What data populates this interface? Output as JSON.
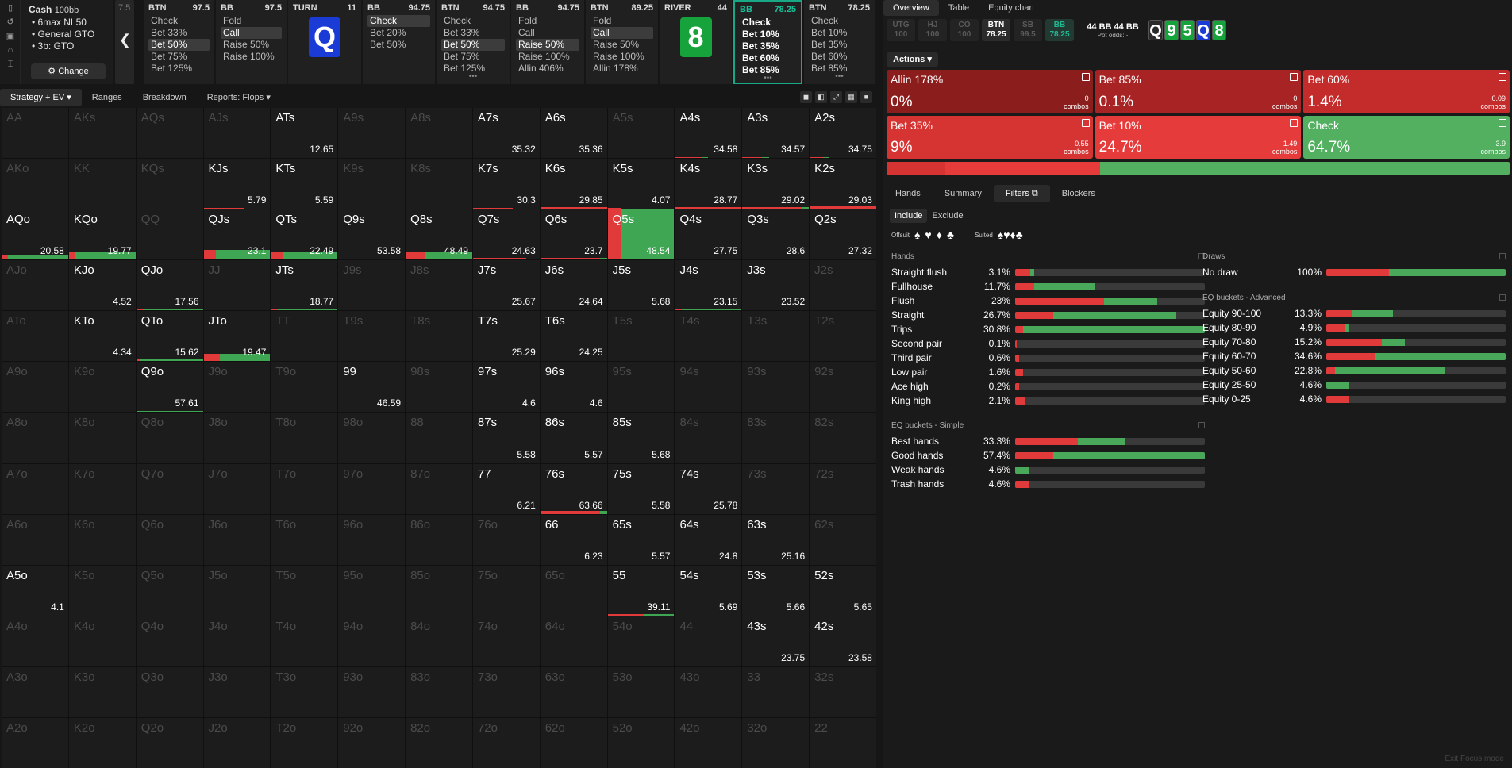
{
  "game": {
    "title": "Cash",
    "depth": "100bb",
    "lines": [
      "6max NL50",
      "General GTO",
      "3b: GTO"
    ],
    "change": "Change"
  },
  "nav": {
    "stack_peek": "7.5",
    "back_icon": "chevron-left-icon"
  },
  "columns": [
    {
      "pos": "BTN",
      "stack": "97.5",
      "options": [
        "Check",
        "Bet 33%",
        "Bet 50%",
        "Bet 75%",
        "Bet 125%"
      ],
      "selected": 2
    },
    {
      "pos": "BB",
      "stack": "97.5",
      "options": [
        "Fold",
        "Call",
        "Raise 50%",
        "Raise 100%"
      ],
      "selected": 1
    },
    {
      "pos": "TURN",
      "stack": "11",
      "card": "Q",
      "card_color": "#1b3bd6"
    },
    {
      "pos": "BB",
      "stack": "94.75",
      "options": [
        "Check",
        "Bet 20%",
        "Bet 50%"
      ],
      "selected": 0
    },
    {
      "pos": "BTN",
      "stack": "94.75",
      "options": [
        "Check",
        "Bet 33%",
        "Bet 50%",
        "Bet 75%",
        "Bet 125%"
      ],
      "selected": 2,
      "more": true
    },
    {
      "pos": "BB",
      "stack": "94.75",
      "options": [
        "Fold",
        "Call",
        "Raise 50%",
        "Raise 100%",
        "Allin 406%"
      ],
      "selected": 2
    },
    {
      "pos": "BTN",
      "stack": "89.25",
      "options": [
        "Fold",
        "Call",
        "Raise 50%",
        "Raise 100%",
        "Allin 178%"
      ],
      "selected": 1
    },
    {
      "pos": "RIVER",
      "stack": "44",
      "card": "8",
      "card_color": "#17a33c"
    },
    {
      "pos": "BB",
      "stack": "78.25",
      "options": [
        "Check",
        "Bet 10%",
        "Bet 35%",
        "Bet 60%",
        "Bet 85%"
      ],
      "active": true,
      "more": true
    },
    {
      "pos": "BTN",
      "stack": "78.25",
      "options": [
        "Check",
        "Bet 10%",
        "Bet 35%",
        "Bet 60%",
        "Bet 85%"
      ],
      "more": true
    }
  ],
  "strategy_tabs": [
    "Strategy + EV",
    "Ranges",
    "Breakdown",
    "Reports: Flops"
  ],
  "view_icons": [
    "cube-icon",
    "half-icon",
    "expand-icon",
    "grid-icon",
    "square-icon"
  ],
  "grid": [
    [
      [
        "AA",
        "",
        1
      ],
      [
        "AKs",
        "",
        1
      ],
      [
        "AQs",
        "",
        1
      ],
      [
        "AJs",
        "",
        1
      ],
      [
        "ATs",
        "12.65",
        0
      ],
      [
        "A9s",
        "",
        1
      ],
      [
        "A8s",
        "",
        1
      ],
      [
        "A7s",
        "35.32",
        0
      ],
      [
        "A6s",
        "35.36",
        0
      ],
      [
        "A5s",
        "",
        1
      ],
      [
        "A4s",
        "34.58",
        0,
        0.4,
        0.1
      ],
      [
        "A3s",
        "34.57",
        0,
        0.3,
        0.1
      ],
      [
        "A2s",
        "34.75",
        0,
        0.2,
        0.1
      ]
    ],
    [
      [
        "AKo",
        "",
        1
      ],
      [
        "KK",
        "",
        1
      ],
      [
        "KQs",
        "",
        1
      ],
      [
        "KJs",
        "5.79",
        0,
        0.6,
        0,
        2
      ],
      [
        "KTs",
        "5.59",
        0
      ],
      [
        "K9s",
        "",
        1
      ],
      [
        "K8s",
        "",
        1
      ],
      [
        "K7s",
        "30.3",
        0,
        0.6,
        0,
        2
      ],
      [
        "K6s",
        "29.85",
        0,
        1,
        0,
        3
      ],
      [
        "K5s",
        "4.07",
        0,
        0.2,
        0,
        2
      ],
      [
        "K4s",
        "28.77",
        0,
        1,
        0,
        4
      ],
      [
        "K3s",
        "29.02",
        0,
        0.9,
        0.1,
        3
      ],
      [
        "K2s",
        "29.03",
        0,
        1,
        0,
        5
      ]
    ],
    [
      [
        "AQo",
        "20.58",
        0,
        0.1,
        0.9,
        8
      ],
      [
        "KQo",
        "19.77",
        0,
        0.1,
        0.9,
        14
      ],
      [
        "QQ",
        "",
        1
      ],
      [
        "QJs",
        "23.1",
        0,
        0.18,
        0.82,
        20
      ],
      [
        "QTs",
        "22.49",
        0,
        0.18,
        0.82,
        16
      ],
      [
        "Q9s",
        "53.58",
        0
      ],
      [
        "Q8s",
        "48.49",
        0,
        0.3,
        0.7,
        14
      ],
      [
        "Q7s",
        "24.63",
        0,
        0.8,
        0,
        3
      ],
      [
        "Q6s",
        "23.7",
        0,
        0.9,
        0.1,
        3
      ],
      [
        "Q5s",
        "48.54",
        0,
        0.2,
        0.8,
        100
      ],
      [
        "Q4s",
        "27.75",
        0,
        0.5,
        0,
        2
      ],
      [
        "Q3s",
        "28.6",
        0,
        1,
        0,
        2
      ],
      [
        "Q2s",
        "27.32",
        0
      ]
    ],
    [
      [
        "AJo",
        "",
        1
      ],
      [
        "KJo",
        "4.52",
        0
      ],
      [
        "QJo",
        "17.56",
        0,
        0.1,
        0.9,
        4
      ],
      [
        "JJ",
        "",
        1
      ],
      [
        "JTs",
        "18.77",
        0,
        0.1,
        0.9,
        3
      ],
      [
        "J9s",
        "",
        1
      ],
      [
        "J8s",
        "",
        1
      ],
      [
        "J7s",
        "25.67",
        0
      ],
      [
        "J6s",
        "24.64",
        0
      ],
      [
        "J5s",
        "5.68",
        0
      ],
      [
        "J4s",
        "23.15",
        0,
        0.1,
        0.9,
        3
      ],
      [
        "J3s",
        "23.52",
        0
      ],
      [
        "J2s",
        "",
        1
      ]
    ],
    [
      [
        "ATo",
        "",
        1
      ],
      [
        "KTo",
        "4.34",
        0
      ],
      [
        "QTo",
        "15.62",
        0,
        0.05,
        0.95,
        3
      ],
      [
        "JTo",
        "19.47",
        0,
        0.25,
        0.75,
        15
      ],
      [
        "TT",
        "",
        1
      ],
      [
        "T9s",
        "",
        1
      ],
      [
        "T8s",
        "",
        1
      ],
      [
        "T7s",
        "25.29",
        0
      ],
      [
        "T6s",
        "24.25",
        0
      ],
      [
        "T5s",
        "",
        1
      ],
      [
        "T4s",
        "",
        1
      ],
      [
        "T3s",
        "",
        1
      ],
      [
        "T2s",
        "",
        1
      ]
    ],
    [
      [
        "A9o",
        "",
        1
      ],
      [
        "K9o",
        "",
        1
      ],
      [
        "Q9o",
        "57.61",
        0,
        0,
        1,
        2
      ],
      [
        "J9o",
        "",
        1
      ],
      [
        "T9o",
        "",
        1
      ],
      [
        "99",
        "46.59",
        0
      ],
      [
        "98s",
        "",
        1
      ],
      [
        "97s",
        "4.6",
        0
      ],
      [
        "96s",
        "4.6",
        0
      ],
      [
        "95s",
        "",
        1
      ],
      [
        "94s",
        "",
        1
      ],
      [
        "93s",
        "",
        1
      ],
      [
        "92s",
        "",
        1
      ]
    ],
    [
      [
        "A8o",
        "",
        1
      ],
      [
        "K8o",
        "",
        1
      ],
      [
        "Q8o",
        "",
        1
      ],
      [
        "J8o",
        "",
        1
      ],
      [
        "T8o",
        "",
        1
      ],
      [
        "98o",
        "",
        1
      ],
      [
        "88",
        "",
        1
      ],
      [
        "87s",
        "5.58",
        0
      ],
      [
        "86s",
        "5.57",
        0
      ],
      [
        "85s",
        "5.68",
        0
      ],
      [
        "84s",
        "",
        1
      ],
      [
        "83s",
        "",
        1
      ],
      [
        "82s",
        "",
        1
      ]
    ],
    [
      [
        "A7o",
        "",
        1
      ],
      [
        "K7o",
        "",
        1
      ],
      [
        "Q7o",
        "",
        1
      ],
      [
        "J7o",
        "",
        1
      ],
      [
        "T7o",
        "",
        1
      ],
      [
        "97o",
        "",
        1
      ],
      [
        "87o",
        "",
        1
      ],
      [
        "77",
        "6.21",
        0
      ],
      [
        "76s",
        "63.66",
        0,
        0.9,
        0.1,
        5
      ],
      [
        "75s",
        "5.58",
        0
      ],
      [
        "74s",
        "25.78",
        0
      ],
      [
        "73s",
        "",
        1
      ],
      [
        "72s",
        "",
        1
      ]
    ],
    [
      [
        "A6o",
        "",
        1
      ],
      [
        "K6o",
        "",
        1
      ],
      [
        "Q6o",
        "",
        1
      ],
      [
        "J6o",
        "",
        1
      ],
      [
        "T6o",
        "",
        1
      ],
      [
        "96o",
        "",
        1
      ],
      [
        "86o",
        "",
        1
      ],
      [
        "76o",
        "",
        1
      ],
      [
        "66",
        "6.23",
        0
      ],
      [
        "65s",
        "5.57",
        0
      ],
      [
        "64s",
        "24.8",
        0
      ],
      [
        "63s",
        "25.16",
        0
      ],
      [
        "62s",
        "",
        1
      ]
    ],
    [
      [
        "A5o",
        "4.1",
        0
      ],
      [
        "K5o",
        "",
        1
      ],
      [
        "Q5o",
        "",
        1
      ],
      [
        "J5o",
        "",
        1
      ],
      [
        "T5o",
        "",
        1
      ],
      [
        "95o",
        "",
        1
      ],
      [
        "85o",
        "",
        1
      ],
      [
        "75o",
        "",
        1
      ],
      [
        "65o",
        "",
        1
      ],
      [
        "55",
        "39.11",
        0,
        0.55,
        0.45,
        3
      ],
      [
        "54s",
        "5.69",
        0
      ],
      [
        "53s",
        "5.66",
        0
      ],
      [
        "52s",
        "5.65",
        0
      ]
    ],
    [
      [
        "A4o",
        "",
        1
      ],
      [
        "K4o",
        "",
        1
      ],
      [
        "Q4o",
        "",
        1
      ],
      [
        "J4o",
        "",
        1
      ],
      [
        "T4o",
        "",
        1
      ],
      [
        "94o",
        "",
        1
      ],
      [
        "84o",
        "",
        1
      ],
      [
        "74o",
        "",
        1
      ],
      [
        "64o",
        "",
        1
      ],
      [
        "54o",
        "",
        1
      ],
      [
        "44",
        "",
        1
      ],
      [
        "43s",
        "23.75",
        0,
        0.3,
        0.7,
        2
      ],
      [
        "42s",
        "23.58",
        0,
        0,
        1,
        2
      ]
    ],
    [
      [
        "A3o",
        "",
        1
      ],
      [
        "K3o",
        "",
        1
      ],
      [
        "Q3o",
        "",
        1
      ],
      [
        "J3o",
        "",
        1
      ],
      [
        "T3o",
        "",
        1
      ],
      [
        "93o",
        "",
        1
      ],
      [
        "83o",
        "",
        1
      ],
      [
        "73o",
        "",
        1
      ],
      [
        "63o",
        "",
        1
      ],
      [
        "53o",
        "",
        1
      ],
      [
        "43o",
        "",
        1
      ],
      [
        "33",
        "",
        1
      ],
      [
        "32s",
        "",
        1
      ]
    ],
    [
      [
        "A2o",
        "",
        1
      ],
      [
        "K2o",
        "",
        1
      ],
      [
        "Q2o",
        "",
        1
      ],
      [
        "J2o",
        "",
        1
      ],
      [
        "T2o",
        "",
        1
      ],
      [
        "92o",
        "",
        1
      ],
      [
        "82o",
        "",
        1
      ],
      [
        "72o",
        "",
        1
      ],
      [
        "62o",
        "",
        1
      ],
      [
        "52o",
        "",
        1
      ],
      [
        "42o",
        "",
        1
      ],
      [
        "32o",
        "",
        1
      ],
      [
        "22",
        "",
        1
      ]
    ]
  ],
  "right_tabs": [
    "Overview",
    "Table",
    "Equity chart"
  ],
  "positions": [
    {
      "n": "UTG",
      "v": "100"
    },
    {
      "n": "HJ",
      "v": "100"
    },
    {
      "n": "CO",
      "v": "100"
    },
    {
      "n": "BTN",
      "v": "78.25",
      "on": true
    },
    {
      "n": "SB",
      "v": "99.5"
    },
    {
      "n": "BB",
      "v": "78.25",
      "bb": true
    }
  ],
  "pot": {
    "main": "44 BB",
    "side": "44 BB",
    "odds_label": "Pot odds:",
    "odds": "-"
  },
  "board": [
    {
      "c": "Q",
      "col": "#2a2a2a"
    },
    {
      "c": "9",
      "col": "#17a33c"
    },
    {
      "c": "5",
      "col": "#17a33c"
    },
    {
      "c": "Q",
      "col": "#1b3bd6"
    },
    {
      "c": "8",
      "col": "#17a33c"
    }
  ],
  "actions_label": "Actions",
  "action_cards": [
    {
      "name": "Allin 178%",
      "pct": "0%",
      "combos": "0",
      "color": "#8b1d1d"
    },
    {
      "name": "Bet 85%",
      "pct": "0.1%",
      "combos": "0",
      "color": "#a82424"
    },
    {
      "name": "Bet 60%",
      "pct": "1.4%",
      "combos": "0.09",
      "color": "#c42c2c"
    },
    {
      "name": "Bet 35%",
      "pct": "9%",
      "combos": "0.55",
      "color": "#d63333"
    },
    {
      "name": "Bet 10%",
      "pct": "24.7%",
      "combos": "1.49",
      "color": "#e63b3b"
    },
    {
      "name": "Check",
      "pct": "64.7%",
      "combos": "3.9",
      "color": "#52b060"
    }
  ],
  "combos_label": "combos",
  "freq": [
    {
      "w": 0.1,
      "c": "#8b1d1d"
    },
    {
      "w": 9,
      "c": "#d63333"
    },
    {
      "w": 24.7,
      "c": "#e63b3b"
    },
    {
      "w": 64.7,
      "c": "#52b060"
    }
  ],
  "sub_tabs": [
    "Hands",
    "Summary",
    "Filters",
    "Blockers"
  ],
  "include": [
    "Include",
    "Exclude"
  ],
  "suit_labels": {
    "offsuit": "Offsuit",
    "suited": "Suited"
  },
  "suits": [
    "♠",
    "♥",
    "♦",
    "♣"
  ],
  "hands_title": "Hands",
  "hands": [
    {
      "n": "Straight flush",
      "p": "3.1%",
      "r": 8,
      "g": 2
    },
    {
      "n": "Fullhouse",
      "p": "11.7%",
      "r": 10,
      "g": 32
    },
    {
      "n": "Flush",
      "p": "23%",
      "r": 47,
      "g": 28
    },
    {
      "n": "Straight",
      "p": "26.7%",
      "r": 20,
      "g": 65
    },
    {
      "n": "Trips",
      "p": "30.8%",
      "r": 4,
      "g": 96
    },
    {
      "n": "Second pair",
      "p": "0.1%",
      "r": 1,
      "g": 0
    },
    {
      "n": "Third pair",
      "p": "0.6%",
      "r": 2,
      "g": 0
    },
    {
      "n": "Low pair",
      "p": "1.6%",
      "r": 4,
      "g": 0
    },
    {
      "n": "Ace high",
      "p": "0.2%",
      "r": 2,
      "g": 0
    },
    {
      "n": "King high",
      "p": "2.1%",
      "r": 5,
      "g": 0
    }
  ],
  "simple_title": "EQ buckets - Simple",
  "simple": [
    {
      "n": "Best hands",
      "p": "33.3%",
      "r": 33,
      "g": 25
    },
    {
      "n": "Good hands",
      "p": "57.4%",
      "r": 20,
      "g": 80
    },
    {
      "n": "Weak hands",
      "p": "4.6%",
      "r": 0,
      "g": 7
    },
    {
      "n": "Trash hands",
      "p": "4.6%",
      "r": 7,
      "g": 0
    }
  ],
  "draws_title": "Draws",
  "draws": [
    {
      "n": "No draw",
      "p": "100%",
      "r": 35,
      "g": 65
    }
  ],
  "adv_title": "EQ buckets - Advanced",
  "adv": [
    {
      "n": "Equity 90-100",
      "p": "13.3%",
      "r": 14,
      "g": 23
    },
    {
      "n": "Equity 80-90",
      "p": "4.9%",
      "r": 10,
      "g": 3
    },
    {
      "n": "Equity 70-80",
      "p": "15.2%",
      "r": 31,
      "g": 13
    },
    {
      "n": "Equity 60-70",
      "p": "34.6%",
      "r": 27,
      "g": 73
    },
    {
      "n": "Equity 50-60",
      "p": "22.8%",
      "r": 5,
      "g": 61
    },
    {
      "n": "Equity 25-50",
      "p": "4.6%",
      "r": 0,
      "g": 13
    },
    {
      "n": "Equity 0-25",
      "p": "4.6%",
      "r": 13,
      "g": 0
    }
  ],
  "exit": "Exit Focus mode"
}
